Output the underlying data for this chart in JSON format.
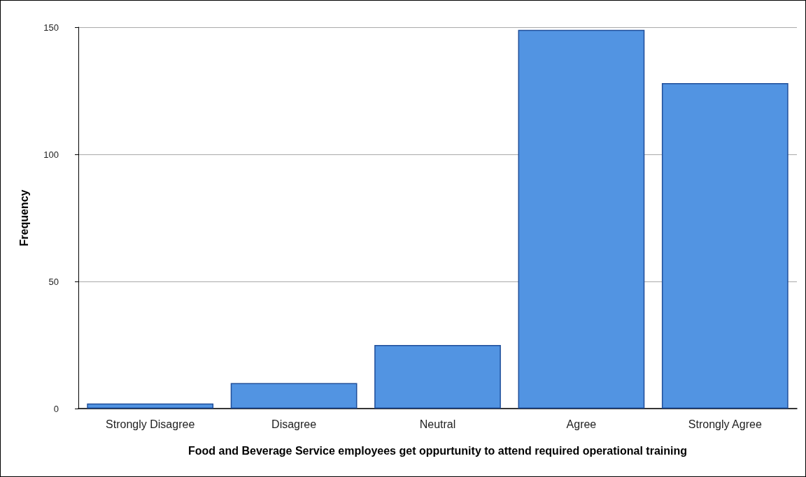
{
  "chart_data": {
    "type": "bar",
    "xlabel": "Food and Beverage Service employees get oppurtunity to attend required operational training",
    "ylabel": "Frequency",
    "categories": [
      "Strongly Disagree",
      "Disagree",
      "Neutral",
      "Agree",
      "Strongly Agree"
    ],
    "values": [
      2,
      10,
      25,
      149,
      128
    ],
    "color": "#5294e2",
    "ylim": [
      0,
      150
    ],
    "yticks": [
      0,
      50,
      100,
      150
    ],
    "grid": "y"
  }
}
